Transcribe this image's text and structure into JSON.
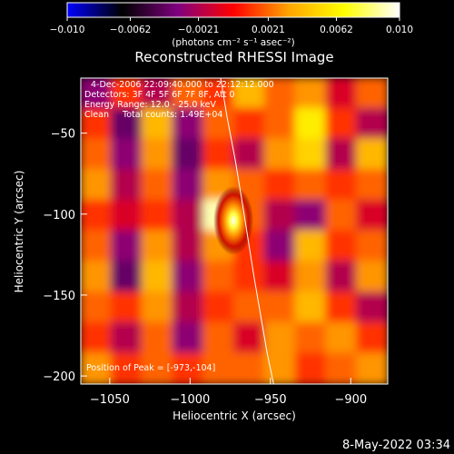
{
  "chart_data": {
    "type": "heatmap",
    "title": "Reconstructed RHESSI Image",
    "xlabel": "Heliocentric X (arcsec)",
    "ylabel": "Heliocentric Y (arcsec)",
    "xlim": [
      -1068,
      -877
    ],
    "ylim": [
      -205,
      -16
    ],
    "xticks": [
      -1050,
      -1000,
      -950,
      -900
    ],
    "yticks": [
      -200,
      -150,
      -100,
      -50
    ],
    "xtick_labels": [
      "−1050",
      "−1000",
      "−950",
      "−900"
    ],
    "ytick_labels": [
      "−200",
      "−150",
      "−100",
      "−50"
    ],
    "colorbar": {
      "range": [
        -0.01,
        0.01
      ],
      "ticks": [
        -0.01,
        -0.0062,
        -0.0021,
        0.0021,
        0.0062,
        0.01
      ],
      "tick_labels": [
        "−0.010",
        "−0.0062",
        "−0.0021",
        "0.0021",
        "0.0062",
        "0.010"
      ],
      "units": "(photons cm⁻² s⁻¹ asec⁻²)",
      "colors": [
        "#0000ff",
        "#000000",
        "#800080",
        "#ff0000",
        "#ffa500",
        "#ffff00",
        "#ffffff"
      ]
    },
    "peak": [
      -973,
      -104
    ],
    "annotations": [
      "4-Dec-2006 22:09:40.000 to 22:12:12.000",
      "Detectors: 3F 4F 5F 6F 7F 8F, Att 0",
      "Energy Range: 12.0 - 25.0 keV",
      "Clean     Total counts: 1.49E+04"
    ],
    "peak_label": "Position of Peak = [-973,-104]",
    "limb": {
      "x": [
        -981,
        -977,
        -972,
        -968,
        -964,
        -960,
        -956,
        -952,
        -948
      ],
      "y": [
        -16,
        -40,
        -66,
        -90,
        -115,
        -140,
        -163,
        -186,
        -205
      ]
    },
    "image_values": {
      "cols": 10,
      "rows": 10,
      "values": [
        [
          -0.003,
          0.001,
          -0.002,
          0.002,
          0.001,
          0.004,
          0.002,
          0.003,
          -0.001,
          0.002
        ],
        [
          0.001,
          -0.004,
          0.004,
          -0.003,
          0.002,
          0.001,
          0.002,
          0.006,
          0.001,
          -0.002
        ],
        [
          0.002,
          -0.003,
          0.003,
          -0.004,
          0.001,
          -0.002,
          0.003,
          0.005,
          -0.002,
          0.004
        ],
        [
          0.003,
          -0.002,
          0.002,
          -0.003,
          0.003,
          0.002,
          0.001,
          0.002,
          0.001,
          0.002
        ],
        [
          0.001,
          -0.001,
          0.001,
          -0.002,
          0.009,
          0.002,
          -0.002,
          -0.003,
          0.002,
          -0.001
        ],
        [
          0.002,
          -0.003,
          0.003,
          -0.002,
          0.003,
          0.001,
          -0.003,
          0.004,
          0.001,
          0.002
        ],
        [
          0.003,
          -0.004,
          0.004,
          -0.003,
          0.002,
          0.001,
          -0.001,
          0.003,
          -0.002,
          0.003
        ],
        [
          0.002,
          0.001,
          0.003,
          -0.002,
          0.001,
          0.002,
          0.002,
          0.004,
          0.001,
          -0.002
        ],
        [
          0.001,
          -0.002,
          0.002,
          -0.003,
          0.002,
          -0.001,
          0.003,
          0.002,
          0.003,
          0.001
        ],
        [
          0.003,
          0.001,
          0.002,
          0.001,
          0.002,
          0.002,
          0.003,
          0.001,
          0.002,
          0.003
        ]
      ]
    }
  },
  "footer": {
    "timestamp": "8-May-2022 03:34"
  }
}
